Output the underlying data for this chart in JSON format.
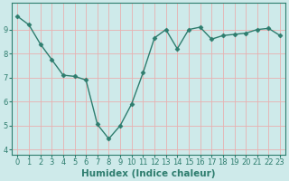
{
  "x": [
    0,
    1,
    2,
    3,
    4,
    5,
    6,
    7,
    8,
    9,
    10,
    11,
    12,
    13,
    14,
    15,
    16,
    17,
    18,
    19,
    20,
    21,
    22,
    23
  ],
  "y": [
    9.55,
    9.2,
    8.4,
    7.75,
    7.1,
    7.05,
    6.9,
    5.05,
    4.45,
    5.0,
    5.9,
    7.2,
    8.65,
    9.0,
    8.2,
    9.0,
    9.1,
    8.6,
    8.75,
    8.8,
    8.85,
    9.0,
    9.05,
    8.75
  ],
  "line_color": "#2e7d6e",
  "marker": "D",
  "marker_size": 2.5,
  "bg_color": "#ceeaea",
  "grid_color_major": "#e8b0b0",
  "grid_color_minor": "#e8b0b0",
  "xlabel": "Humidex (Indice chaleur)",
  "xlim": [
    -0.5,
    23.5
  ],
  "ylim": [
    3.8,
    10.1
  ],
  "yticks": [
    4,
    5,
    6,
    7,
    8,
    9
  ],
  "xticks": [
    0,
    1,
    2,
    3,
    4,
    5,
    6,
    7,
    8,
    9,
    10,
    11,
    12,
    13,
    14,
    15,
    16,
    17,
    18,
    19,
    20,
    21,
    22,
    23
  ],
  "tick_fontsize": 6,
  "xlabel_fontsize": 7.5,
  "line_width": 1.0,
  "spine_color": "#2e7d6e",
  "tick_color": "#2e7d6e"
}
